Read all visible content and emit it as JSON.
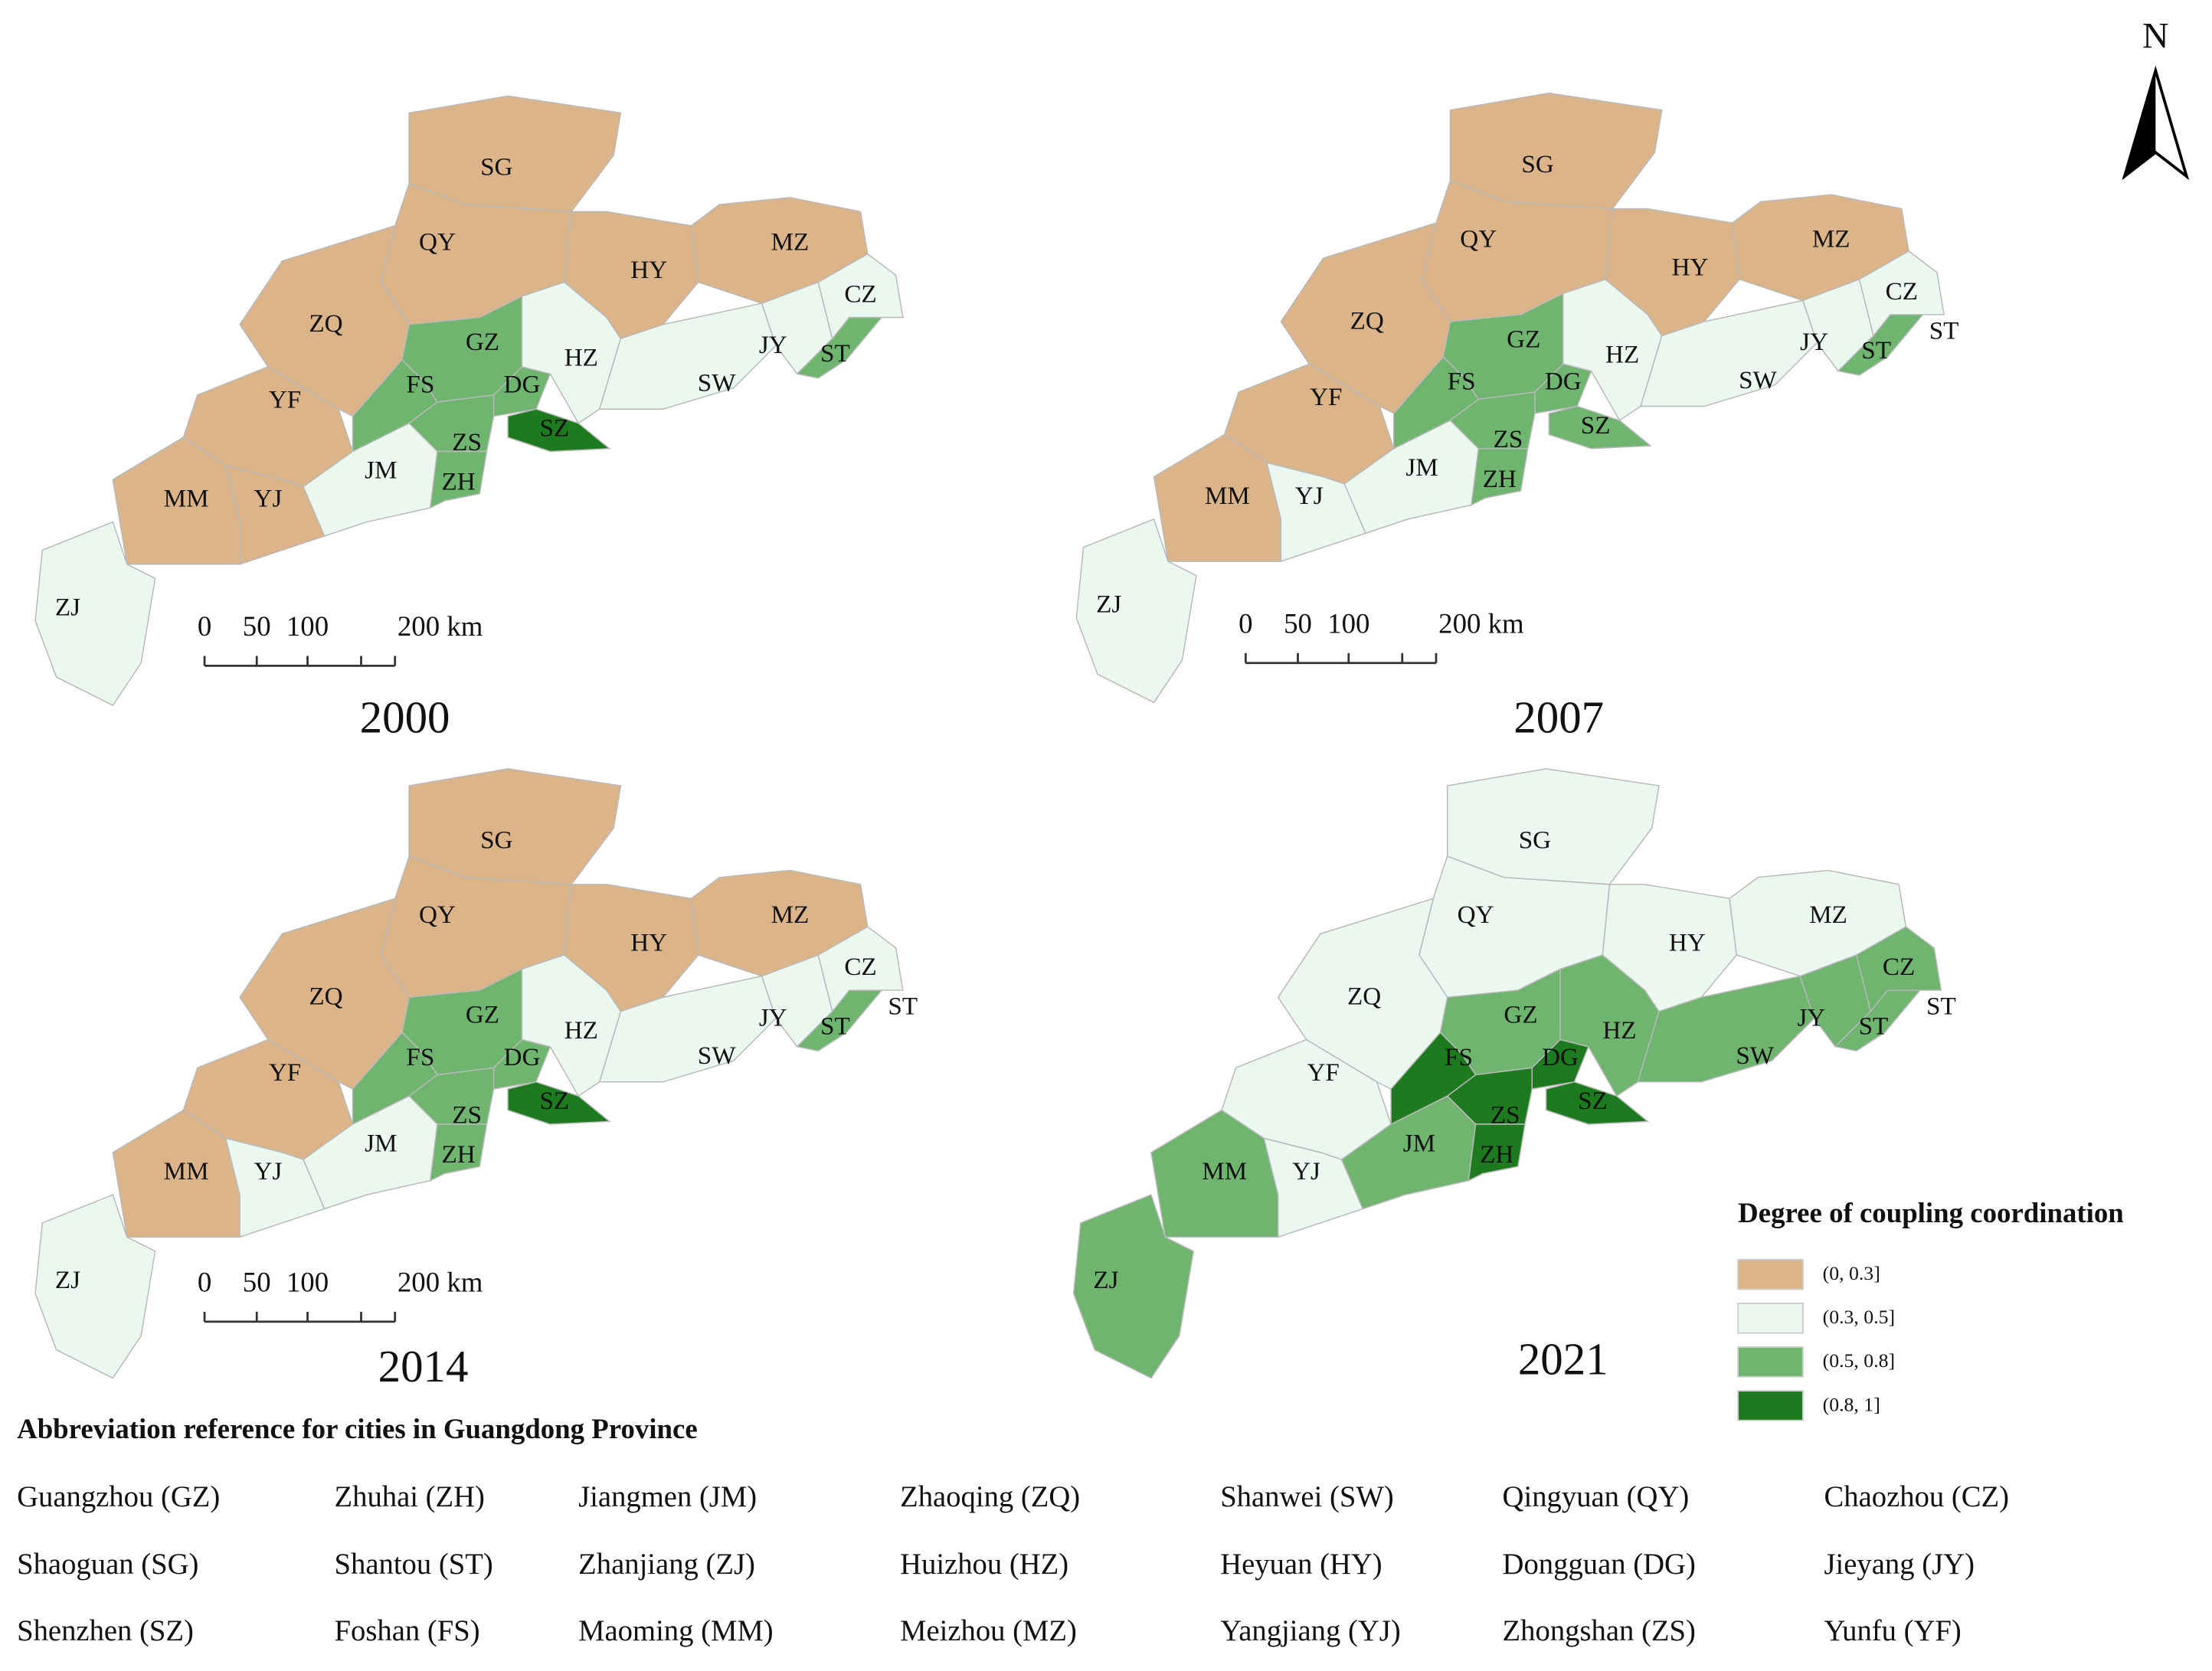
{
  "north": "N",
  "legend": {
    "title": "Degree of coupling coordination",
    "items": [
      {
        "label": "(0, 0.3]",
        "color": "#dcb489"
      },
      {
        "label": "(0.3, 0.5]",
        "color": "#eaf8ef"
      },
      {
        "label": "(0.5, 0.8]",
        "color": "#6fb56f"
      },
      {
        "label": "(0.8, 1]",
        "color": "#1e7a1e"
      }
    ]
  },
  "scale_labels": [
    "0",
    "50",
    "100",
    "200 km"
  ],
  "maps": [
    {
      "year": "2000",
      "extra_labels": [],
      "regions": [
        {
          "label": "SG",
          "color": "#dcb489"
        },
        {
          "label": "QY",
          "color": "#dcb489"
        },
        {
          "label": "ZQ",
          "color": "#dcb489"
        },
        {
          "label": "YF",
          "color": "#dcb489"
        },
        {
          "label": "MM",
          "color": "#dcb489"
        },
        {
          "label": "YJ",
          "color": "#dcb489"
        },
        {
          "label": "ZJ",
          "color": "#eaf8ef"
        },
        {
          "label": "JM",
          "color": "#eaf8ef"
        },
        {
          "label": "GZ",
          "color": "#6fb56f"
        },
        {
          "label": "FS",
          "color": "#6fb56f"
        },
        {
          "label": "DG",
          "color": "#6fb56f"
        },
        {
          "label": "SZ",
          "color": "#1e7a1e"
        },
        {
          "label": "ZS",
          "color": "#6fb56f"
        },
        {
          "label": "ZH",
          "color": "#6fb56f"
        },
        {
          "label": "HZ",
          "color": "#eaf8ef"
        },
        {
          "label": "HY",
          "color": "#dcb489"
        },
        {
          "label": "MZ",
          "color": "#dcb489"
        },
        {
          "label": "SW",
          "color": "#eaf8ef"
        },
        {
          "label": "JY",
          "color": "#eaf8ef"
        },
        {
          "label": "ST",
          "color": "#6fb56f"
        },
        {
          "label": "CZ",
          "color": "#eaf8ef"
        }
      ]
    },
    {
      "year": "2007",
      "extra_labels": [
        "ST"
      ],
      "regions": [
        {
          "label": "SG",
          "color": "#dcb489"
        },
        {
          "label": "QY",
          "color": "#dcb489"
        },
        {
          "label": "ZQ",
          "color": "#dcb489"
        },
        {
          "label": "YF",
          "color": "#dcb489"
        },
        {
          "label": "MM",
          "color": "#dcb489"
        },
        {
          "label": "YJ",
          "color": "#eaf8ef"
        },
        {
          "label": "ZJ",
          "color": "#eaf8ef"
        },
        {
          "label": "JM",
          "color": "#eaf8ef"
        },
        {
          "label": "GZ",
          "color": "#6fb56f"
        },
        {
          "label": "FS",
          "color": "#6fb56f"
        },
        {
          "label": "DG",
          "color": "#6fb56f"
        },
        {
          "label": "SZ",
          "color": "#6fb56f"
        },
        {
          "label": "ZS",
          "color": "#6fb56f"
        },
        {
          "label": "ZH",
          "color": "#6fb56f"
        },
        {
          "label": "HZ",
          "color": "#eaf8ef"
        },
        {
          "label": "HY",
          "color": "#dcb489"
        },
        {
          "label": "MZ",
          "color": "#dcb489"
        },
        {
          "label": "SW",
          "color": "#eaf8ef"
        },
        {
          "label": "JY",
          "color": "#eaf8ef"
        },
        {
          "label": "ST",
          "color": "#6fb56f"
        },
        {
          "label": "CZ",
          "color": "#eaf8ef"
        }
      ]
    },
    {
      "year": "2014",
      "extra_labels": [
        "ST"
      ],
      "regions": [
        {
          "label": "SG",
          "color": "#dcb489"
        },
        {
          "label": "QY",
          "color": "#dcb489"
        },
        {
          "label": "ZQ",
          "color": "#dcb489"
        },
        {
          "label": "YF",
          "color": "#dcb489"
        },
        {
          "label": "MM",
          "color": "#dcb489"
        },
        {
          "label": "YJ",
          "color": "#eaf8ef"
        },
        {
          "label": "ZJ",
          "color": "#eaf8ef"
        },
        {
          "label": "JM",
          "color": "#eaf8ef"
        },
        {
          "label": "GZ",
          "color": "#6fb56f"
        },
        {
          "label": "FS",
          "color": "#6fb56f"
        },
        {
          "label": "DG",
          "color": "#6fb56f"
        },
        {
          "label": "SZ",
          "color": "#1e7a1e"
        },
        {
          "label": "ZS",
          "color": "#6fb56f"
        },
        {
          "label": "ZH",
          "color": "#6fb56f"
        },
        {
          "label": "HZ",
          "color": "#eaf8ef"
        },
        {
          "label": "HY",
          "color": "#dcb489"
        },
        {
          "label": "MZ",
          "color": "#dcb489"
        },
        {
          "label": "SW",
          "color": "#eaf8ef"
        },
        {
          "label": "JY",
          "color": "#eaf8ef"
        },
        {
          "label": "ST",
          "color": "#6fb56f"
        },
        {
          "label": "CZ",
          "color": "#eaf8ef"
        }
      ]
    },
    {
      "year": "2021",
      "extra_labels": [
        "ST"
      ],
      "regions": [
        {
          "label": "SG",
          "color": "#eaf8ef"
        },
        {
          "label": "QY",
          "color": "#eaf8ef"
        },
        {
          "label": "ZQ",
          "color": "#eaf8ef"
        },
        {
          "label": "YF",
          "color": "#eaf8ef"
        },
        {
          "label": "MM",
          "color": "#6fb56f"
        },
        {
          "label": "YJ",
          "color": "#eaf8ef"
        },
        {
          "label": "ZJ",
          "color": "#6fb56f"
        },
        {
          "label": "JM",
          "color": "#6fb56f"
        },
        {
          "label": "GZ",
          "color": "#6fb56f"
        },
        {
          "label": "FS",
          "color": "#1e7a1e"
        },
        {
          "label": "DG",
          "color": "#1e7a1e"
        },
        {
          "label": "SZ",
          "color": "#1e7a1e"
        },
        {
          "label": "ZS",
          "color": "#1e7a1e"
        },
        {
          "label": "ZH",
          "color": "#1e7a1e"
        },
        {
          "label": "HZ",
          "color": "#6fb56f"
        },
        {
          "label": "HY",
          "color": "#eaf8ef"
        },
        {
          "label": "MZ",
          "color": "#eaf8ef"
        },
        {
          "label": "SW",
          "color": "#6fb56f"
        },
        {
          "label": "JY",
          "color": "#6fb56f"
        },
        {
          "label": "ST",
          "color": "#6fb56f"
        },
        {
          "label": "CZ",
          "color": "#6fb56f"
        }
      ]
    }
  ],
  "abbreviations": {
    "title": "Abbreviation reference for cities in Guangdong Province",
    "rows": [
      [
        "Guangzhou (GZ)",
        "Zhuhai (ZH)",
        "Jiangmen (JM)",
        "Zhaoqing (ZQ)",
        "Shanwei (SW)",
        "Qingyuan (QY)",
        "Chaozhou (CZ)"
      ],
      [
        "Shaoguan (SG)",
        "Shantou (ST)",
        "Zhanjiang (ZJ)",
        "Huizhou (HZ)",
        "Heyuan (HY)",
        "Dongguan (DG)",
        "Jieyang (JY)"
      ],
      [
        "Shenzhen (SZ)",
        "Foshan (FS)",
        "Maoming (MM)",
        "Meizhou (MZ)",
        "Yangjiang (YJ)",
        "Zhongshan (ZS)",
        "Yunfu (YF)"
      ]
    ]
  }
}
